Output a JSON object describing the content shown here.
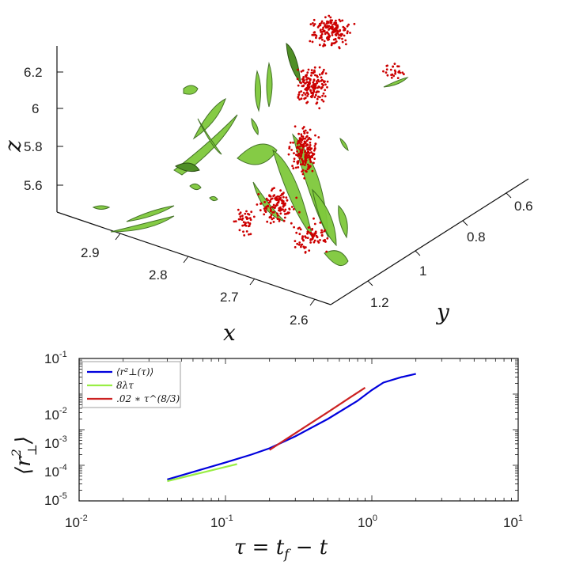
{
  "chart_data": [
    {
      "type": "scatter",
      "projection": "3d",
      "xlabel": "x",
      "ylabel": "y",
      "zlabel": "z",
      "x_ticks": [
        "2.9",
        "2.8",
        "2.7",
        "2.6"
      ],
      "y_ticks": [
        "0.6",
        "0.8",
        "1",
        "1.2"
      ],
      "z_ticks": [
        "6.2",
        "6",
        "5.8",
        "5.6"
      ],
      "colors": {
        "particles": "#cc0000",
        "isosurfaces": "#7fc93c"
      }
    },
    {
      "type": "line",
      "xscale": "log",
      "yscale": "log",
      "xlim": [
        0.01,
        10
      ],
      "ylim": [
        1e-05,
        0.1
      ],
      "x_ticks": [
        "10",
        "10",
        "10",
        "10"
      ],
      "x_tick_exps": [
        "-2",
        "-1",
        "0",
        "1"
      ],
      "y_ticks": [
        "10",
        "10",
        "10",
        "10",
        "10"
      ],
      "y_tick_exps": [
        "-5",
        "-4",
        "-3",
        "-2",
        "-1"
      ],
      "xlabel": "τ = t",
      "xlabel_sub": "f",
      "xlabel_tail": " − t",
      "ylabel": "⟨r",
      "ylabel_sup": "2",
      "ylabel_sub": "⊥",
      "ylabel_tail": "⟩",
      "legend_position": "top-left",
      "series": [
        {
          "name": "⟨r²⊥(τ)⟩",
          "color": "#0000dd",
          "x": [
            0.04,
            0.06,
            0.1,
            0.15,
            0.2,
            0.3,
            0.5,
            0.8,
            1.0,
            1.2,
            1.6,
            2.0
          ],
          "y": [
            4e-05,
            6.5e-05,
            0.00012,
            0.0002,
            0.0003,
            0.00065,
            0.002,
            0.0065,
            0.013,
            0.021,
            0.03,
            0.037
          ]
        },
        {
          "name": "8λτ",
          "color": "#99ee44",
          "x": [
            0.04,
            0.06,
            0.08,
            0.1,
            0.12
          ],
          "y": [
            3.6e-05,
            5.4e-05,
            7.2e-05,
            9e-05,
            0.000108
          ]
        },
        {
          "name": ".02 ∗ τ^(8/3)",
          "color": "#cc2222",
          "x": [
            0.2,
            0.3,
            0.5,
            0.7,
            0.9
          ],
          "y": [
            0.00027,
            0.0008,
            0.0031,
            0.0077,
            0.0151
          ]
        }
      ]
    }
  ]
}
